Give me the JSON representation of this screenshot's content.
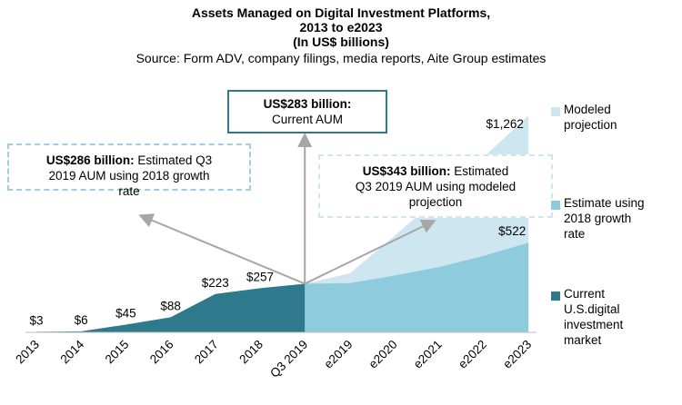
{
  "title": {
    "line1": "Assets  Managed on Digital Investment Platforms,",
    "line2": "2013 to e2023",
    "line3": "(In US$ billions)",
    "source": "Source: Form ADV, company filings, media reports, Aite Group estimates"
  },
  "callouts": {
    "current": {
      "bold": "US$283 billion:",
      "text": "Current AUM"
    },
    "growth2018": {
      "bold": "US$286 billion:",
      "text1": " Estimated Q3",
      "text2": "2019 AUM using 2018 growth",
      "text3": "rate"
    },
    "modeled": {
      "bold": "US$343 billion:",
      "text1": " Estimated",
      "text2": "Q3 2019 AUM using modeled",
      "text3": "projection"
    }
  },
  "legend": [
    {
      "line1": "Modeled",
      "line2": "projection",
      "color": "#cde6ef"
    },
    {
      "line1": "Estimate using",
      "line2": "2018 growth",
      "line3": "rate",
      "color": "#8ecbdd"
    },
    {
      "line1": "Current",
      "line2": "U.S.digital",
      "line3": "investment",
      "line4": "market",
      "color": "#2e7a8c"
    }
  ],
  "colors": {
    "current": "#2e7a8c",
    "estimate": "#8ecbdd",
    "modeled": "#cde6ef",
    "arrow": "#a6a6a6",
    "axis": "#bfbfbf"
  },
  "chart_data": {
    "type": "area",
    "title": "Assets  Managed on Digital Investment Platforms, 2013 to e2023 (In US$ billions)",
    "categories": [
      "2013",
      "2014",
      "2015",
      "2016",
      "2017",
      "2018",
      "Q3 2019",
      "e2019",
      "e2020",
      "e2021",
      "e2022",
      "e2023"
    ],
    "series": [
      {
        "name": "Current U.S.digital investment market",
        "values": [
          3,
          6,
          45,
          88,
          223,
          257,
          283,
          null,
          null,
          null,
          null,
          null
        ]
      },
      {
        "name": "Estimate using 2018 growth rate",
        "values": [
          null,
          null,
          null,
          null,
          null,
          null,
          283,
          286,
          330,
          380,
          445,
          522
        ]
      },
      {
        "name": "Modeled projection",
        "values": [
          null,
          null,
          null,
          null,
          null,
          257,
          283,
          343,
          560,
          790,
          1020,
          1262
        ]
      }
    ],
    "data_labels": [
      "$3",
      "$6",
      "$45",
      "$88",
      "$223",
      "$257",
      "$522",
      "$1,262"
    ],
    "ylim": [
      0,
      1300
    ],
    "grid": false,
    "legend_position": "right"
  }
}
